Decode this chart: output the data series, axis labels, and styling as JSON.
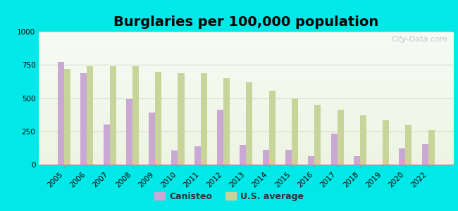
{
  "title": "Burglaries per 100,000 population",
  "years": [
    2005,
    2006,
    2007,
    2008,
    2009,
    2010,
    2011,
    2012,
    2013,
    2014,
    2015,
    2016,
    2017,
    2018,
    2019,
    2020,
    2022
  ],
  "canisteo": [
    770,
    690,
    300,
    490,
    390,
    105,
    140,
    415,
    150,
    110,
    110,
    65,
    235,
    65,
    0,
    120,
    155
  ],
  "us_avg": [
    720,
    740,
    740,
    740,
    700,
    690,
    690,
    650,
    620,
    555,
    495,
    450,
    415,
    370,
    335,
    295,
    260
  ],
  "canisteo_color": "#c9a8d4",
  "us_avg_color": "#c8d49a",
  "background_outer": "#00e8e8",
  "background_plot_top": "#f8fbf5",
  "background_plot_bottom": "#e8f0d8",
  "ylim": [
    0,
    1000
  ],
  "yticks": [
    0,
    250,
    500,
    750,
    1000
  ],
  "bar_width": 0.28,
  "title_fontsize": 14,
  "legend_canisteo": "Canisteo",
  "legend_us": "U.S. average",
  "tick_fontsize": 7.5,
  "watermark": "City-Data.com"
}
